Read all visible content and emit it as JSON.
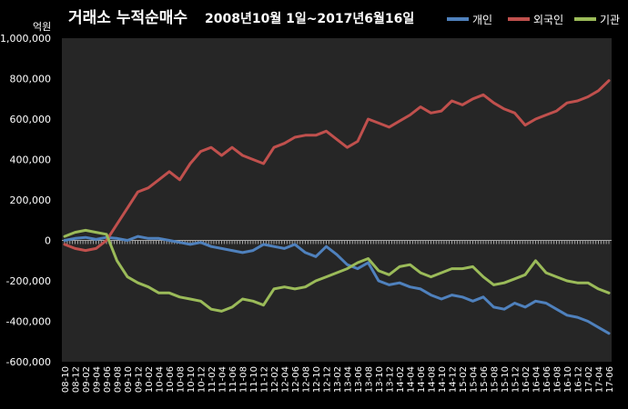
{
  "chart_data": {
    "type": "line",
    "title": "거래소 누적순매수",
    "subtitle": "2008년10월 1일~2017년6월16일",
    "y_unit": "억원",
    "ylim": [
      -600000,
      1000000
    ],
    "y_ticks": [
      "1,000,000",
      "800,000",
      "600,000",
      "400,000",
      "200,000",
      "0",
      "-200,000",
      "-400,000",
      "-600,000"
    ],
    "y_tick_values": [
      1000000,
      800000,
      600000,
      400000,
      200000,
      0,
      -200000,
      -400000,
      -600000
    ],
    "x_ticks": [
      "08-10",
      "08-12",
      "09-02",
      "09-04",
      "09-06",
      "09-08",
      "09-10",
      "09-12",
      "10-02",
      "10-04",
      "10-06",
      "10-08",
      "10-10",
      "10-12",
      "11-02",
      "11-04",
      "11-06",
      "11-08",
      "11-10",
      "11-12",
      "12-02",
      "12-04",
      "12-06",
      "12-08",
      "12-10",
      "12-12",
      "13-02",
      "13-04",
      "13-06",
      "13-08",
      "13-10",
      "13-12",
      "14-02",
      "14-04",
      "14-06",
      "14-08",
      "14-10",
      "14-12",
      "15-02",
      "15-04",
      "15-06",
      "15-08",
      "15-10",
      "15-12",
      "16-02",
      "16-04",
      "16-06",
      "16-08",
      "16-10",
      "16-12",
      "17-02",
      "17-04",
      "17-06"
    ],
    "grid": false,
    "legend_position": "top-right",
    "series": [
      {
        "name": "개인",
        "color": "#4f81bd",
        "values": [
          0,
          10000,
          15000,
          5000,
          15000,
          10000,
          0,
          20000,
          10000,
          10000,
          0,
          -10000,
          -20000,
          -10000,
          -30000,
          -40000,
          -50000,
          -60000,
          -50000,
          -20000,
          -30000,
          -40000,
          -20000,
          -60000,
          -80000,
          -30000,
          -70000,
          -120000,
          -140000,
          -110000,
          -200000,
          -220000,
          -210000,
          -230000,
          -240000,
          -270000,
          -290000,
          -270000,
          -280000,
          -300000,
          -280000,
          -330000,
          -340000,
          -310000,
          -330000,
          -300000,
          -310000,
          -340000,
          -370000,
          -380000,
          -400000,
          -430000,
          -460000
        ]
      },
      {
        "name": "외국인",
        "color": "#c0504d",
        "values": [
          -20000,
          -40000,
          -50000,
          -40000,
          0,
          80000,
          160000,
          240000,
          260000,
          300000,
          340000,
          300000,
          380000,
          440000,
          460000,
          420000,
          460000,
          420000,
          400000,
          380000,
          460000,
          480000,
          510000,
          520000,
          520000,
          540000,
          500000,
          460000,
          490000,
          600000,
          580000,
          560000,
          590000,
          620000,
          660000,
          630000,
          640000,
          690000,
          670000,
          700000,
          720000,
          680000,
          650000,
          630000,
          570000,
          600000,
          620000,
          640000,
          680000,
          690000,
          710000,
          740000,
          790000
        ]
      },
      {
        "name": "기관",
        "color": "#9bbb59",
        "values": [
          20000,
          40000,
          50000,
          40000,
          30000,
          -100000,
          -180000,
          -210000,
          -230000,
          -260000,
          -260000,
          -280000,
          -290000,
          -300000,
          -340000,
          -350000,
          -330000,
          -290000,
          -300000,
          -320000,
          -240000,
          -230000,
          -240000,
          -230000,
          -200000,
          -180000,
          -160000,
          -140000,
          -110000,
          -90000,
          -150000,
          -170000,
          -130000,
          -120000,
          -160000,
          -180000,
          -160000,
          -140000,
          -140000,
          -130000,
          -180000,
          -220000,
          -210000,
          -190000,
          -170000,
          -100000,
          -160000,
          -180000,
          -200000,
          -210000,
          -210000,
          -240000,
          -260000
        ]
      }
    ]
  }
}
